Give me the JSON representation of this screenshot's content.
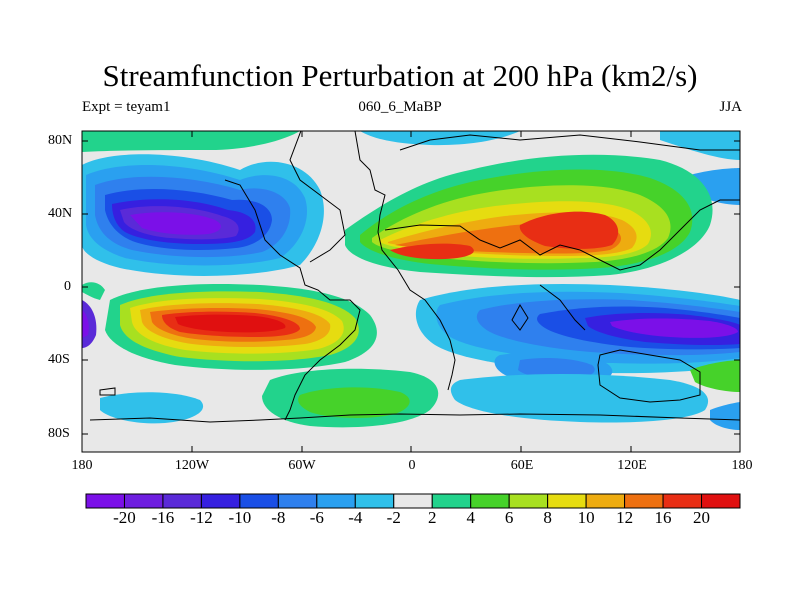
{
  "title": "Streamfunction Perturbation at 200 hPa (km2/s)",
  "subtitle_left": "Expt = teyam1",
  "subtitle_center": "060_6_MaBP",
  "subtitle_right": "JJA",
  "map": {
    "lat_ticks": [
      "80N",
      "40N",
      "0",
      "40S",
      "80S"
    ],
    "lon_ticks": [
      "180",
      "120W",
      "60W",
      "0",
      "60E",
      "120E",
      "180"
    ]
  },
  "colorbar": {
    "levels": [
      "-20",
      "-16",
      "-12",
      "-10",
      "-8",
      "-6",
      "-4",
      "-2",
      "2",
      "4",
      "6",
      "8",
      "10",
      "12",
      "16",
      "20"
    ],
    "colors": [
      "#7b10e8",
      "#6e1ee0",
      "#5a2ad8",
      "#3620e0",
      "#1a4fe6",
      "#2f80ee",
      "#2aa0f0",
      "#30c0ea",
      "#e8e8e8",
      "#22d38c",
      "#46d22a",
      "#a8e020",
      "#e6dc10",
      "#eeac10",
      "#ee7010",
      "#e82e14",
      "#e01010"
    ]
  }
}
